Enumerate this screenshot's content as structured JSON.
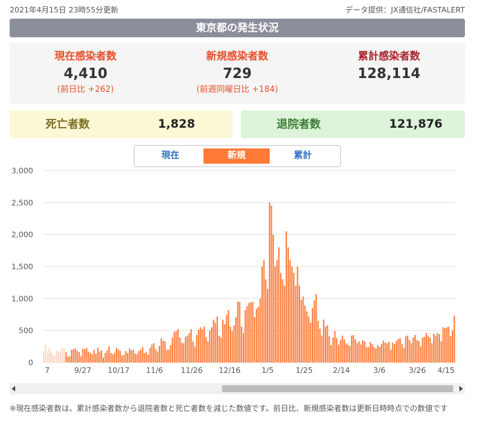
{
  "header": {
    "updated": "2021年4月15日 23時55分更新",
    "source": "データ提供：JX通信社/FASTALERT",
    "title": "東京都の発生状況"
  },
  "stats": {
    "current": {
      "label": "現在感染者数",
      "value": "4,410",
      "sub": "(前日比 +262)"
    },
    "new": {
      "label": "新規感染者数",
      "value": "729",
      "sub": "(前週同曜日比 +184)"
    },
    "total": {
      "label": "累計感染者数",
      "value": "128,114"
    }
  },
  "cards": {
    "deaths": {
      "label": "死亡者数",
      "value": "1,828"
    },
    "recovered": {
      "label": "退院者数",
      "value": "121,876"
    }
  },
  "tabs": {
    "current": "現在",
    "new": "新規",
    "total": "累計"
  },
  "colors": {
    "bar": "#ff7a36",
    "bar_start": "#fbd6c2",
    "accent_red": "#e5502a",
    "title_bg": "#8b8f9a"
  },
  "chart_data": {
    "type": "bar",
    "title": "",
    "xlabel": "",
    "ylabel": "",
    "ylim": [
      0,
      3000
    ],
    "y_ticks": [
      "0",
      "500",
      "1,000",
      "1,500",
      "2,000",
      "2,500",
      "3,000"
    ],
    "x_tick_labels": [
      "7",
      "9/27",
      "10/17",
      "11/6",
      "11/26",
      "12/16",
      "1/5",
      "1/25",
      "2/14",
      "3/6",
      "3/26",
      "4/15"
    ],
    "grid": true,
    "series": [
      {
        "values": [
          170,
          270,
          150,
          230,
          160,
          120,
          100,
          190,
          170,
          180,
          230,
          210,
          160,
          90,
          100,
          200,
          210,
          220,
          180,
          160,
          100,
          220,
          210,
          230,
          170,
          150,
          130,
          200,
          140,
          230,
          170,
          190,
          80,
          150,
          190,
          250,
          150,
          130,
          150,
          230,
          200,
          180,
          110,
          120,
          180,
          150,
          220,
          190,
          200,
          140,
          130,
          180,
          200,
          240,
          150,
          160,
          120,
          230,
          280,
          300,
          210,
          170,
          260,
          380,
          340,
          330,
          200,
          200,
          270,
          390,
          480,
          490,
          520,
          390,
          310,
          300,
          400,
          420,
          460,
          520,
          330,
          250,
          430,
          510,
          550,
          520,
          560,
          400,
          330,
          500,
          550,
          670,
          620,
          720,
          420,
          390,
          670,
          600,
          750,
          820,
          560,
          490,
          580,
          710,
          950,
          950,
          560,
          460,
          820,
          880,
          930,
          940,
          950,
          710,
          840,
          870,
          1000,
          1500,
          1600,
          1300,
          1150,
          2500,
          2450,
          2000,
          1500,
          1600,
          1800,
          1400,
          1300,
          1200,
          2050,
          1800,
          1600,
          1500,
          1400,
          1200,
          1500,
          1200,
          980,
          1030,
          890,
          800,
          720,
          620,
          850,
          970,
          1070,
          650,
          530,
          420,
          670,
          560,
          580,
          410,
          270,
          390,
          490,
          380,
          280,
          350,
          420,
          360,
          300,
          280,
          260,
          420,
          430,
          360,
          300,
          330,
          280,
          350,
          330,
          240,
          240,
          320,
          290,
          240,
          220,
          270,
          240,
          290,
          340,
          310,
          300,
          320,
          200,
          310,
          290,
          340,
          370,
          380,
          290,
          230,
          410,
          420,
          350,
          300,
          390,
          430,
          350,
          340,
          250,
          390,
          400,
          460,
          420,
          390,
          300,
          450,
          420,
          460,
          440,
          330,
          550,
          540,
          550,
          560,
          410,
          500,
          730
        ]
      }
    ]
  },
  "footnote": "※現在感染者数は、累計感染者数から退院者数と死亡者数を減じた数値です。前日比、新規感染者数は更新日時時点での数値です"
}
